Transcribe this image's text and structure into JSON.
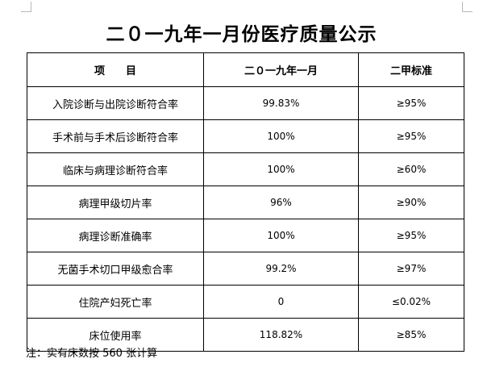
{
  "document": {
    "title": "二０一九年一月份医疗质量公示",
    "table": {
      "headers": {
        "item_part1": "项",
        "item_part2": "目",
        "period": "二０一九年一月",
        "standard": "二甲标准"
      },
      "rows": [
        {
          "metric": "入院诊断与出院诊断符合率",
          "value": "99.83%",
          "standard": "≥95%"
        },
        {
          "metric": "手术前与手术后诊断符合率",
          "value": "100%",
          "standard": "≥95%"
        },
        {
          "metric": "临床与病理诊断符合率",
          "value": "100%",
          "standard": "≥60%"
        },
        {
          "metric": "病理甲级切片率",
          "value": "96%",
          "standard": "≥90%"
        },
        {
          "metric": "病理诊断准确率",
          "value": "100%",
          "standard": "≥95%"
        },
        {
          "metric": "无菌手术切口甲级愈合率",
          "value": "99.2%",
          "standard": "≥97%"
        },
        {
          "metric": "住院产妇死亡率",
          "value": "0",
          "standard": "≤0.02%"
        },
        {
          "metric": "床位使用率",
          "value": "118.82%",
          "standard": "≥85%"
        }
      ]
    },
    "footnote": "注：实有床数按 560 张计算"
  }
}
